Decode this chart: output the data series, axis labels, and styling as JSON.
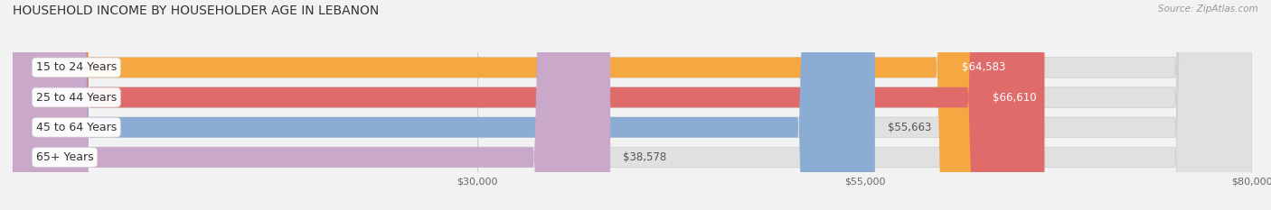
{
  "title": "HOUSEHOLD INCOME BY HOUSEHOLDER AGE IN LEBANON",
  "source": "Source: ZipAtlas.com",
  "categories": [
    "15 to 24 Years",
    "25 to 44 Years",
    "45 to 64 Years",
    "65+ Years"
  ],
  "values": [
    64583,
    66610,
    55663,
    38578
  ],
  "bar_colors": [
    "#F5A742",
    "#E06B6B",
    "#8BADD4",
    "#C9A8C9"
  ],
  "value_label_colors": [
    "#ffffff",
    "#ffffff",
    "#555555",
    "#555555"
  ],
  "value_labels": [
    "$64,583",
    "$66,610",
    "$55,663",
    "$38,578"
  ],
  "xlim": [
    0,
    80000
  ],
  "xticks": [
    30000,
    55000,
    80000
  ],
  "xticklabels": [
    "$30,000",
    "$55,000",
    "$80,000"
  ],
  "background_color": "#f2f2f2",
  "bar_background_color": "#e0e0e0",
  "title_fontsize": 10,
  "source_fontsize": 7.5,
  "label_fontsize": 9,
  "value_fontsize": 8.5,
  "bar_height": 0.68
}
